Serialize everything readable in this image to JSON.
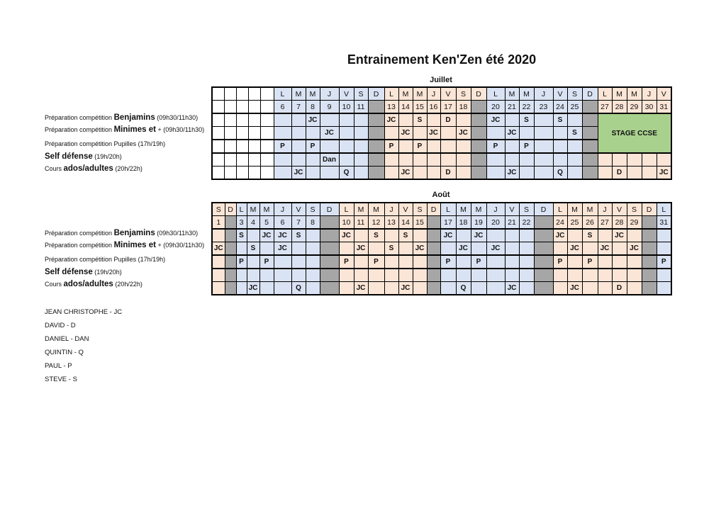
{
  "title": "Entrainement Ken'Zen été 2020",
  "row_labels": [
    {
      "pre": "Préparation compétition ",
      "bold": "Benjamins",
      "post": " (09h30/11h30)"
    },
    {
      "pre": "Préparation compétition ",
      "bold": "Minimes et",
      "post": " + (09h30/11h30)"
    },
    {
      "pre": "Préparation compétition Pupilles (17h/19h)",
      "bold": "",
      "post": ""
    },
    {
      "pre": "",
      "bold": "Self défense",
      "post": " (19h/20h)"
    },
    {
      "pre": "Cours ",
      "bold": "ados/adultes",
      "post": " (20h/22h)"
    }
  ],
  "colors": {
    "blue": "#dae3f3",
    "peach": "#fbe5d6",
    "sunday": "#a6a6a6",
    "stage": "#a9d18e"
  },
  "july": {
    "month": "Juillet",
    "days": [
      "",
      "",
      "",
      "",
      "",
      "L",
      "M",
      "M",
      "J",
      "V",
      "S",
      "D",
      "L",
      "M",
      "M",
      "J",
      "V",
      "S",
      "D",
      "L",
      "M",
      "M",
      "J",
      "V",
      "S",
      "D",
      "L",
      "M",
      "M",
      "J",
      "V"
    ],
    "dates": [
      "",
      "",
      "",
      "",
      "",
      "6",
      "7",
      "8",
      "9",
      "10",
      "11",
      "",
      "13",
      "14",
      "15",
      "16",
      "17",
      "18",
      "",
      "20",
      "21",
      "22",
      "23",
      "24",
      "25",
      "",
      "27",
      "28",
      "29",
      "30",
      "31"
    ],
    "week": [
      "w",
      "w",
      "w",
      "w",
      "w",
      "b",
      "b",
      "b",
      "b",
      "b",
      "b",
      "b",
      "p",
      "p",
      "p",
      "p",
      "p",
      "p",
      "p",
      "b",
      "b",
      "b",
      "b",
      "b",
      "b",
      "b",
      "p",
      "p",
      "p",
      "p",
      "p"
    ],
    "sunday": [
      0,
      0,
      0,
      0,
      0,
      0,
      0,
      0,
      0,
      0,
      0,
      1,
      0,
      0,
      0,
      0,
      0,
      0,
      1,
      0,
      0,
      0,
      0,
      0,
      0,
      1,
      0,
      0,
      0,
      0,
      0
    ],
    "rows": [
      [
        "",
        "",
        "",
        "",
        "",
        "",
        "",
        "JC",
        "",
        "",
        "",
        "",
        "JC",
        "",
        "S",
        "",
        "D",
        "",
        "",
        "JC",
        "",
        "S",
        "",
        "S",
        "",
        "",
        "",
        "",
        "",
        "",
        ""
      ],
      [
        "",
        "",
        "",
        "",
        "",
        "",
        "",
        "",
        "JC",
        "",
        "",
        "",
        "",
        "JC",
        "",
        "JC",
        "",
        "JC",
        "",
        "",
        "JC",
        "",
        "",
        "",
        "S",
        "",
        "",
        "",
        "",
        "",
        ""
      ],
      [
        "",
        "",
        "",
        "",
        "",
        "P",
        "",
        "P",
        "",
        "",
        "",
        "",
        "P",
        "",
        "P",
        "",
        "",
        "",
        "",
        "P",
        "",
        "P",
        "",
        "",
        "",
        "",
        "",
        "",
        "",
        "",
        ""
      ],
      [
        "",
        "",
        "",
        "",
        "",
        "",
        "",
        "",
        "Dan",
        "",
        "",
        "",
        "",
        "",
        "",
        "",
        "",
        "",
        "",
        "",
        "",
        "",
        "",
        "",
        "",
        "",
        "",
        "",
        "",
        "",
        ""
      ],
      [
        "",
        "",
        "",
        "",
        "",
        "",
        "JC",
        "",
        "",
        "Q",
        "",
        "",
        "",
        "JC",
        "",
        "",
        "D",
        "",
        "",
        "",
        "JC",
        "",
        "",
        "Q",
        "",
        "",
        "",
        "D",
        "",
        "",
        "JC"
      ]
    ],
    "stage": {
      "label": "STAGE CCSE"
    }
  },
  "august": {
    "month": "Août",
    "days": [
      "S",
      "D",
      "L",
      "M",
      "M",
      "J",
      "V",
      "S",
      "D",
      "L",
      "M",
      "M",
      "J",
      "V",
      "S",
      "D",
      "L",
      "M",
      "M",
      "J",
      "V",
      "S",
      "D",
      "L",
      "M",
      "M",
      "J",
      "V",
      "S",
      "D",
      "L"
    ],
    "dates": [
      "1",
      "",
      "3",
      "4",
      "5",
      "6",
      "7",
      "8",
      "",
      "10",
      "11",
      "12",
      "13",
      "14",
      "15",
      "",
      "17",
      "18",
      "19",
      "20",
      "21",
      "22",
      "",
      "24",
      "25",
      "26",
      "27",
      "28",
      "29",
      "",
      "31"
    ],
    "week": [
      "p",
      "p",
      "b",
      "b",
      "b",
      "b",
      "b",
      "b",
      "b",
      "p",
      "p",
      "p",
      "p",
      "p",
      "p",
      "p",
      "b",
      "b",
      "b",
      "b",
      "b",
      "b",
      "b",
      "p",
      "p",
      "p",
      "p",
      "p",
      "p",
      "p",
      "b"
    ],
    "sunday": [
      0,
      1,
      0,
      0,
      0,
      0,
      0,
      0,
      1,
      0,
      0,
      0,
      0,
      0,
      0,
      1,
      0,
      0,
      0,
      0,
      0,
      0,
      1,
      0,
      0,
      0,
      0,
      0,
      0,
      1,
      0
    ],
    "rows": [
      [
        "",
        "",
        "S",
        "",
        "JC",
        "JC",
        "S",
        "",
        "",
        "JC",
        "",
        "S",
        "",
        "S",
        "",
        "",
        "JC",
        "",
        "JC",
        "",
        "",
        "",
        "",
        "JC",
        "",
        "S",
        "",
        "JC",
        "",
        "",
        ""
      ],
      [
        "JC",
        "",
        "",
        "S",
        "",
        "JC",
        "",
        "",
        "",
        "",
        "JC",
        "",
        "S",
        "",
        "JC",
        "",
        "",
        "JC",
        "",
        "JC",
        "",
        "",
        "",
        "",
        "JC",
        "",
        "JC",
        "",
        "JC",
        "",
        ""
      ],
      [
        "",
        "",
        "P",
        "",
        "P",
        "",
        "",
        "",
        "",
        "P",
        "",
        "P",
        "",
        "",
        "",
        "",
        "P",
        "",
        "P",
        "",
        "",
        "",
        "",
        "P",
        "",
        "P",
        "",
        "",
        "",
        "",
        "P"
      ],
      [
        "",
        "",
        "",
        "",
        "",
        "",
        "",
        "",
        "",
        "",
        "",
        "",
        "",
        "",
        "",
        "",
        "",
        "",
        "",
        "",
        "",
        "",
        "",
        "",
        "",
        "",
        "",
        "",
        "",
        "",
        ""
      ],
      [
        "",
        "",
        "",
        "JC",
        "",
        "",
        "Q",
        "",
        "",
        "",
        "JC",
        "",
        "",
        "JC",
        "",
        "",
        "",
        "Q",
        "",
        "",
        "JC",
        "",
        "",
        "",
        "JC",
        "",
        "",
        "D",
        "",
        "",
        ""
      ]
    ]
  },
  "legend": [
    "JEAN CHRISTOPHE - JC",
    "DAVID - D",
    "DANIEL - DAN",
    "QUINTIN - Q",
    "PAUL - P",
    "STEVE - S"
  ]
}
